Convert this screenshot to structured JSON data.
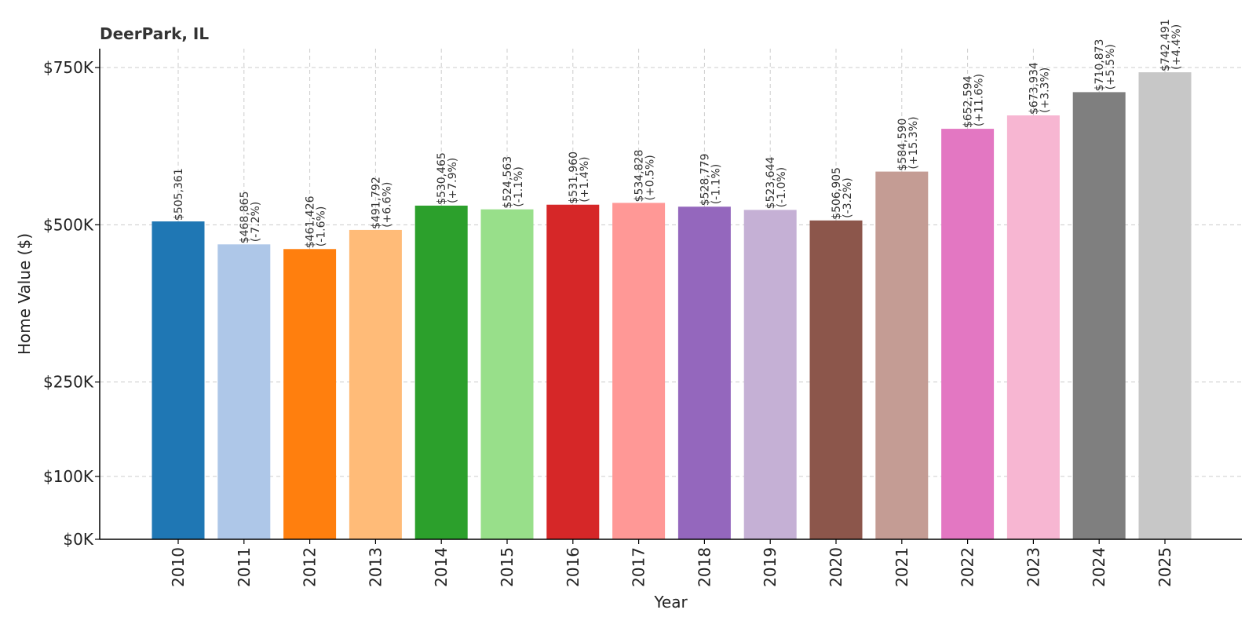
{
  "chart_data": {
    "type": "bar",
    "title": "DeerPark, IL",
    "xlabel": "Year",
    "ylabel": "Home Value ($)",
    "ylim": [
      0,
      780000
    ],
    "yticks": [
      0,
      100000,
      250000,
      500000,
      750000
    ],
    "ytick_labels": [
      "$0K",
      "$100K",
      "$250K",
      "$500K",
      "$750K"
    ],
    "grid": true,
    "categories": [
      "2010",
      "2011",
      "2012",
      "2013",
      "2014",
      "2015",
      "2016",
      "2017",
      "2018",
      "2019",
      "2020",
      "2021",
      "2022",
      "2023",
      "2024",
      "2025"
    ],
    "values": [
      505361,
      468865,
      461426,
      491792,
      530465,
      524563,
      531960,
      534828,
      528779,
      523644,
      506905,
      584590,
      652594,
      673934,
      710873,
      742491
    ],
    "value_labels": [
      "$505,361",
      "$468,865",
      "$461,426",
      "$491,792",
      "$530,465",
      "$524,563",
      "$531,960",
      "$534,828",
      "$528,779",
      "$523,644",
      "$506,905",
      "$584,590",
      "$652,594",
      "$673,934",
      "$710,873",
      "$742,491"
    ],
    "change_labels": [
      "",
      "(-7.2%)",
      "(-1.6%)",
      "(+6.6%)",
      "(+7.9%)",
      "(-1.1%)",
      "(+1.4%)",
      "(+0.5%)",
      "(-1.1%)",
      "(-1.0%)",
      "(-3.2%)",
      "(+15.3%)",
      "(+11.6%)",
      "(+3.3%)",
      "(+5.5%)",
      "(+4.4%)"
    ],
    "colors": [
      "#1f77b4",
      "#aec7e8",
      "#ff7f0e",
      "#ffbb78",
      "#2ca02c",
      "#98df8a",
      "#d62728",
      "#ff9896",
      "#9467bd",
      "#c5b0d5",
      "#8c564b",
      "#c49c94",
      "#e377c2",
      "#f7b6d2",
      "#7f7f7f",
      "#c7c7c7"
    ]
  }
}
